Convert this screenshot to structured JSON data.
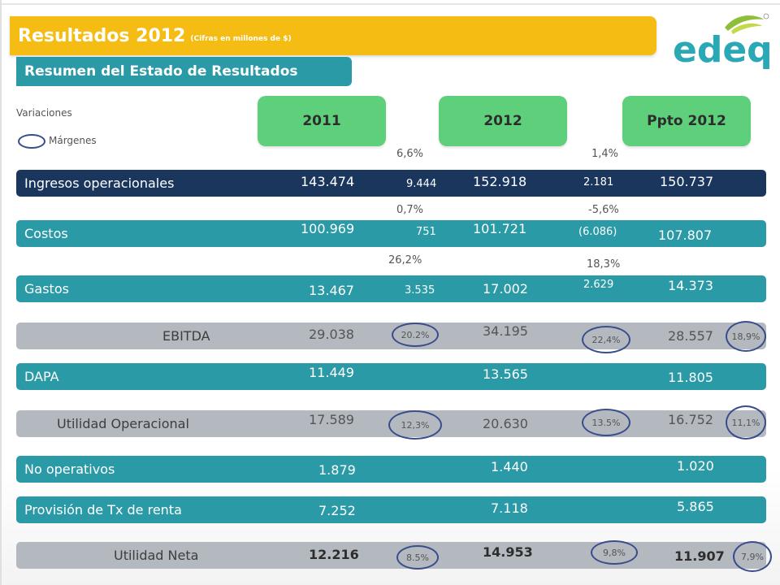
{
  "header": {
    "title": "Resultados 2012",
    "title_note": "(Cifras en millones de $)",
    "subtitle": "Resumen del Estado de Resultados",
    "logo_text": "edeq"
  },
  "legend": {
    "variaciones": "Variaciones",
    "margenes": "Márgenes"
  },
  "columns": [
    "2011",
    "2012",
    "Ppto 2012"
  ],
  "growth_rates": {
    "ingresos": [
      "6,6%",
      "1,4%"
    ],
    "costos": [
      "0,7%",
      "-5,6%"
    ],
    "gastos": [
      "26,2%",
      "18,3%"
    ]
  },
  "rows": [
    {
      "label": "Ingresos operacionales",
      "v2011": "143.474",
      "diff1": "9.444",
      "v2012": "152.918",
      "diff2": "2.181",
      "ppto": "150.737"
    },
    {
      "label": "Costos",
      "v2011": "100.969",
      "diff1": "751",
      "v2012": "101.721",
      "diff2": "(6.086)",
      "ppto": "107.807"
    },
    {
      "label": "Gastos",
      "v2011": "13.467",
      "diff1": "3.535",
      "v2012": "17.002",
      "diff2": "2.629",
      "ppto": "14.373"
    },
    {
      "label": "EBITDA",
      "v2011": "29.038",
      "m2011": "20.2%",
      "v2012": "34.195",
      "m2012": "22,4%",
      "ppto": "28.557",
      "mppto": "18,9%"
    },
    {
      "label": "DAPA",
      "v2011": "11.449",
      "v2012": "13.565",
      "ppto": "11.805"
    },
    {
      "label": "Utilidad Operacional",
      "v2011": "17.589",
      "m2011": "12,3%",
      "v2012": "20.630",
      "m2012": "13.5%",
      "ppto": "16.752",
      "mppto": "11,1%"
    },
    {
      "label": "No operativos",
      "v2011": "1.879",
      "v2012": "1.440",
      "ppto": "1.020"
    },
    {
      "label": "Provisión de Tx de renta",
      "v2011": "7.252",
      "v2012": "7.118",
      "ppto": "5.865"
    },
    {
      "label": "Utilidad Neta",
      "v2011": "12.216",
      "m2011": "8.5%",
      "v2012": "14.953",
      "m2012": "9,8%",
      "ppto": "11.907",
      "mppto": "7,9%"
    }
  ],
  "colors": {
    "title_bar": "#f5bd14",
    "teal": "#2a9aa6",
    "navy": "#1b365d",
    "gray": "#b3b9bf",
    "year_header": "#5ecf7a",
    "oval": "#3a4c8c"
  }
}
